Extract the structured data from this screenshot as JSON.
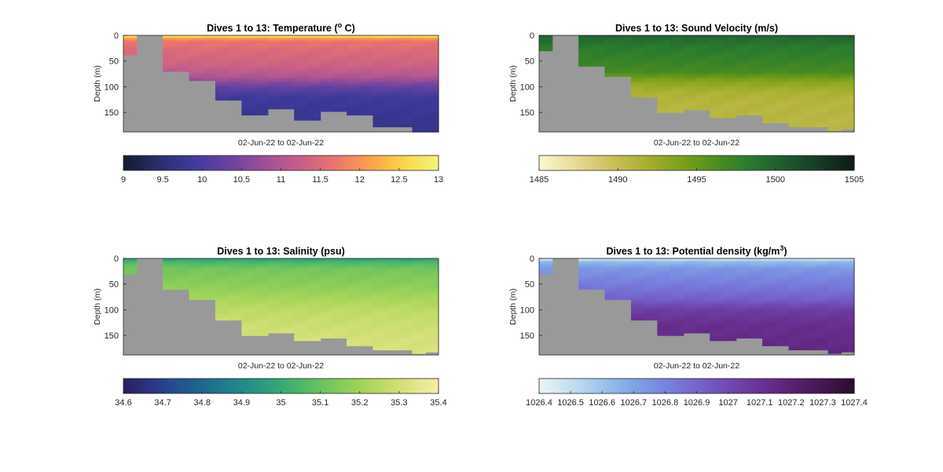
{
  "figure": {
    "background": "#ffffff",
    "land_color": "#999999"
  },
  "chart_data": [
    {
      "type": "heatmap",
      "title": "Dives 1 to 13: Temperature (",
      "title_superscript": "o",
      "title_suffix": " C)",
      "xlabel": "02-Jun-22 to 02-Jun-22",
      "ylabel": "Depth (m)",
      "ylim": [
        0,
        188
      ],
      "y_reversed": true,
      "yticks": [
        0,
        50,
        100,
        150
      ],
      "columns": 24,
      "column_depth_limits_m": [
        38,
        188,
        188,
        70,
        70,
        88,
        88,
        126,
        126,
        155,
        155,
        143,
        143,
        165,
        165,
        148,
        148,
        155,
        155,
        178,
        178,
        178,
        188,
        188
      ],
      "clim": [
        9,
        13
      ],
      "colorbar": {
        "ticks": [
          9,
          9.5,
          10,
          10.5,
          11,
          11.5,
          12,
          12.5,
          13
        ],
        "labels": [
          "9",
          "9.5",
          "10",
          "10.5",
          "11",
          "11.5",
          "12",
          "12.5",
          "13"
        ],
        "colors": [
          "#0f1d2d",
          "#2a2e6e",
          "#3d3a9c",
          "#6a42a0",
          "#9c4f98",
          "#c45e8a",
          "#e9736f",
          "#f9a04a",
          "#fad44a",
          "#f5f57a"
        ]
      },
      "profile_depth_m": [
        0,
        5,
        10,
        30,
        60,
        80,
        100,
        120,
        150,
        188
      ],
      "profile_value": [
        12.9,
        12.2,
        11.7,
        11.5,
        11.3,
        11.0,
        10.3,
        9.9,
        9.8,
        9.7
      ]
    },
    {
      "type": "heatmap",
      "title": "Dives 1 to 13: Sound Velocity (m/s)",
      "xlabel": "02-Jun-22 to 02-Jun-22",
      "ylabel": "Depth (m)",
      "ylim": [
        0,
        188
      ],
      "y_reversed": true,
      "yticks": [
        0,
        50,
        100,
        150
      ],
      "columns": 24,
      "column_depth_limits_m": [
        30,
        188,
        188,
        60,
        60,
        80,
        80,
        120,
        120,
        150,
        150,
        145,
        145,
        160,
        160,
        155,
        155,
        170,
        170,
        178,
        178,
        178,
        185,
        182
      ],
      "clim": [
        1485,
        1505
      ],
      "colorbar": {
        "ticks": [
          1485,
          1490,
          1495,
          1500,
          1505
        ],
        "labels": [
          "1485",
          "1490",
          "1495",
          "1500",
          "1505"
        ],
        "colors": [
          "#fdf7d0",
          "#e8db9a",
          "#cfc060",
          "#a9b030",
          "#7fa21a",
          "#4f8f1f",
          "#2a7a2f",
          "#1e5a30",
          "#163a26",
          "#101a14"
        ]
      },
      "profile_depth_m": [
        0,
        5,
        20,
        50,
        70,
        90,
        110,
        130,
        160,
        188
      ],
      "profile_value": [
        1500.5,
        1499.5,
        1498.5,
        1497.5,
        1496.8,
        1493.5,
        1491.5,
        1491.0,
        1490.8,
        1490.6
      ]
    },
    {
      "type": "heatmap",
      "title": "Dives 1 to 13: Salinity (psu)",
      "xlabel": "02-Jun-22 to 02-Jun-22",
      "ylabel": "Depth (m)",
      "ylim": [
        0,
        188
      ],
      "y_reversed": true,
      "yticks": [
        0,
        50,
        100,
        150
      ],
      "columns": 24,
      "column_depth_limits_m": [
        30,
        188,
        188,
        60,
        60,
        80,
        80,
        120,
        120,
        150,
        150,
        145,
        145,
        160,
        160,
        155,
        155,
        170,
        170,
        178,
        178,
        178,
        185,
        182
      ],
      "clim": [
        34.6,
        35.4
      ],
      "colorbar": {
        "ticks": [
          34.6,
          34.7,
          34.8,
          34.9,
          35,
          35.1,
          35.2,
          35.3,
          35.4
        ],
        "labels": [
          "34.6",
          "34.7",
          "34.8",
          "34.9",
          "35",
          "35.1",
          "35.2",
          "35.3",
          "35.4"
        ],
        "colors": [
          "#2a1d5c",
          "#2b3c8c",
          "#1f5f8f",
          "#1f7f8c",
          "#2a9a80",
          "#4ab56b",
          "#7cc85a",
          "#aad65a",
          "#d6e07a",
          "#f6f0a8"
        ]
      },
      "profile_depth_m": [
        0,
        8,
        20,
        50,
        80,
        100,
        130,
        160,
        188
      ],
      "profile_value": [
        34.95,
        35.05,
        35.12,
        35.16,
        35.22,
        35.26,
        35.29,
        35.31,
        35.32
      ]
    },
    {
      "type": "heatmap",
      "title": "Dives 1 to 13: Potential density (kg/m",
      "title_superscript": "3",
      "title_suffix": ")",
      "xlabel": "02-Jun-22 to 02-Jun-22",
      "ylabel": "Depth (m)",
      "ylim": [
        0,
        188
      ],
      "y_reversed": true,
      "yticks": [
        0,
        50,
        100,
        150
      ],
      "columns": 24,
      "column_depth_limits_m": [
        30,
        188,
        188,
        60,
        60,
        80,
        80,
        120,
        120,
        150,
        150,
        145,
        145,
        160,
        160,
        155,
        155,
        170,
        170,
        178,
        178,
        178,
        185,
        182
      ],
      "clim": [
        1026.4,
        1027.4
      ],
      "colorbar": {
        "ticks": [
          1026.4,
          1026.5,
          1026.6,
          1026.7,
          1026.8,
          1026.9,
          1027,
          1027.1,
          1027.2,
          1027.3,
          1027.4
        ],
        "labels": [
          "1026.4",
          "1026.5",
          "1026.6",
          "1026.7",
          "1026.8",
          "1026.9",
          "1027",
          "1027.1",
          "1027.2",
          "1027.3",
          "1027.4"
        ],
        "colors": [
          "#eaf4f8",
          "#c5dff0",
          "#9cc4ea",
          "#7ea4e6",
          "#7783e0",
          "#7565cc",
          "#7049b0",
          "#6a3294",
          "#5a2074",
          "#441650",
          "#2a0c2c"
        ]
      },
      "profile_depth_m": [
        0,
        6,
        20,
        50,
        80,
        100,
        130,
        188
      ],
      "profile_value": [
        1026.45,
        1026.62,
        1026.74,
        1026.82,
        1026.92,
        1027.05,
        1027.12,
        1027.16
      ]
    }
  ]
}
